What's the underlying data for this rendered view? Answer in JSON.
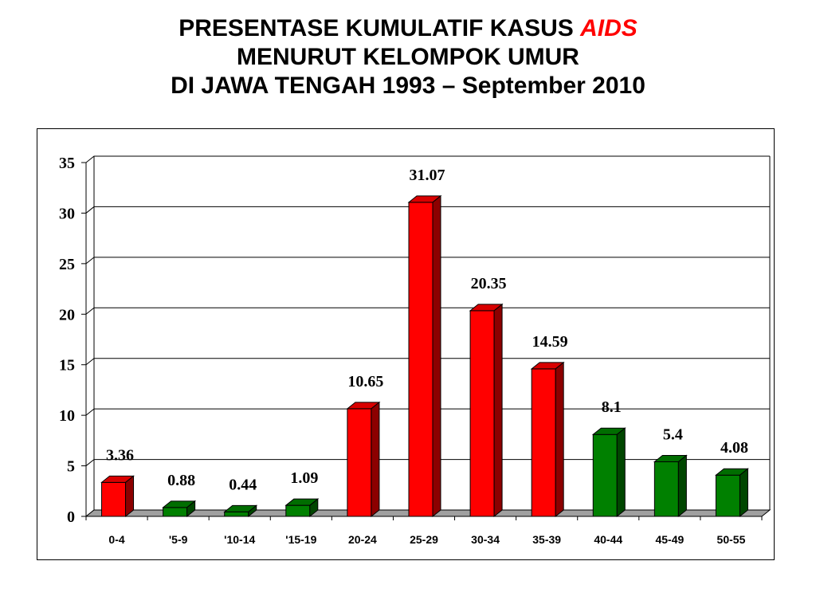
{
  "title": {
    "line1_prefix": "PRESENTASE KUMULATIF KASUS",
    "line1_accent": "AIDS",
    "line2": "MENURUT KELOMPOK UMUR",
    "line3": "DI JAWA TENGAH 1993 – September 2010"
  },
  "colors": {
    "accent": "#ff0000",
    "red": "#ff0000",
    "green": "#008000"
  },
  "chart_data": {
    "type": "bar",
    "categories": [
      "0-4",
      "'5-9",
      "'10-14",
      "'15-19",
      "20-24",
      "25-29",
      "30-34",
      "35-39",
      "40-44",
      "45-49",
      "50-55"
    ],
    "values": [
      3.36,
      0.88,
      0.44,
      1.09,
      10.65,
      31.07,
      20.35,
      14.59,
      8.1,
      5.4,
      4.08
    ],
    "value_labels": [
      "3.36",
      "0.88",
      "0.44",
      "1.09",
      "10.65",
      "31.07",
      "20.35",
      "14.59",
      "8.1",
      "5.4",
      "4.08"
    ],
    "bar_colors": [
      "#ff0000",
      "#008000",
      "#008000",
      "#008000",
      "#ff0000",
      "#ff0000",
      "#ff0000",
      "#ff0000",
      "#008000",
      "#008000",
      "#008000"
    ],
    "yticks": [
      "0",
      "5",
      "10",
      "15",
      "20",
      "25",
      "30",
      "35"
    ],
    "ylim": [
      0,
      35
    ],
    "grid": true,
    "legend": "none",
    "style": "3d"
  }
}
